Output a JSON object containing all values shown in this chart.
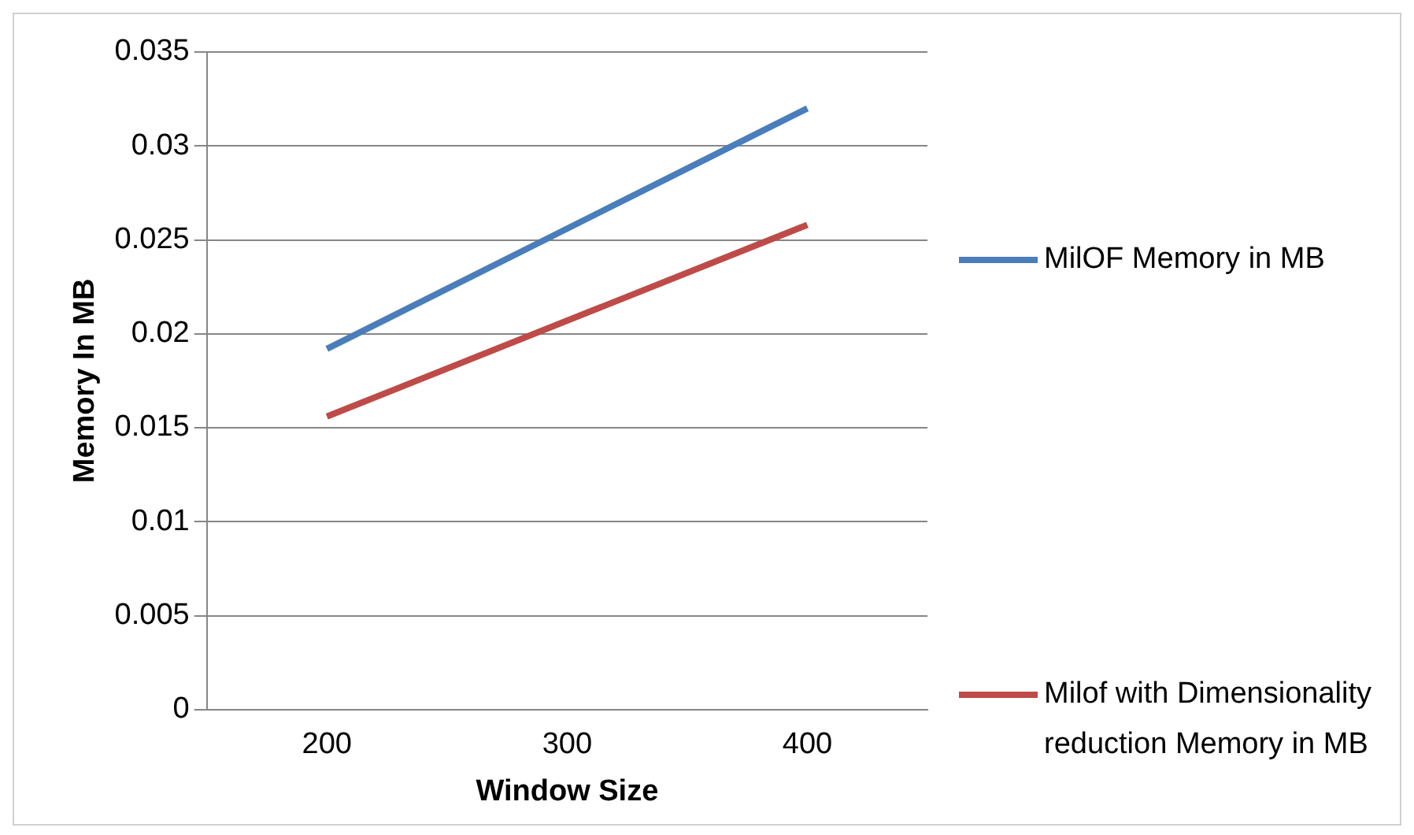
{
  "chart_data": {
    "type": "line",
    "xlabel": "Window Size",
    "ylabel": "Memory In MB",
    "categories": [
      "200",
      "300",
      "400"
    ],
    "series": [
      {
        "name": "MilOF Memory in MB",
        "color": "#4a7ebb",
        "values": [
          0.0192,
          0.0256,
          0.032
        ]
      },
      {
        "name": "Milof with Dimensionality reduction Memory in MB",
        "color": "#be4b48",
        "values": [
          0.0156,
          0.0207,
          0.0258
        ]
      }
    ],
    "ylim": [
      0,
      0.035
    ],
    "yticks": [
      0,
      0.005,
      0.01,
      0.015,
      0.02,
      0.025,
      0.03,
      0.035
    ],
    "grid": "y",
    "legend": "right",
    "marker": "none",
    "line_style": "solid"
  }
}
